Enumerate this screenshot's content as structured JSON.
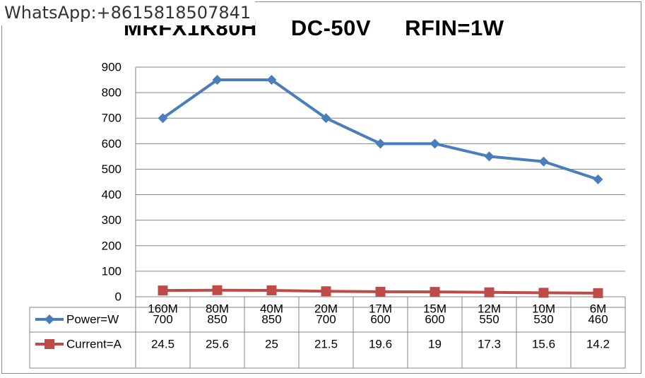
{
  "watermark": "WhatsApp:+8615818507841",
  "title_parts": [
    "MRFX1K80H",
    "DC-50V",
    "RFIN=1W"
  ],
  "chart_data": {
    "type": "line",
    "title": "MRFX1K80H DC-50V RFIN=1W",
    "categories": [
      "160M",
      "80M",
      "40M",
      "20M",
      "17M",
      "15M",
      "12M",
      "10M",
      "6M"
    ],
    "ylim": [
      0,
      900
    ],
    "yticks": [
      0,
      100,
      200,
      300,
      400,
      500,
      600,
      700,
      800,
      900
    ],
    "grid": true,
    "legend": "data-table",
    "series": [
      {
        "name": "Power=W",
        "values": [
          700,
          850,
          850,
          700,
          600,
          600,
          550,
          530,
          460
        ],
        "labels": [
          "700",
          "850",
          "850",
          "700",
          "600",
          "600",
          "550",
          "530",
          "460"
        ],
        "color": "#4a7ebb",
        "marker": "diamond"
      },
      {
        "name": "Current=A",
        "values": [
          24.5,
          25.6,
          25,
          21.5,
          19.6,
          19,
          17.3,
          15.6,
          14.2
        ],
        "labels": [
          "24.5",
          "25.6",
          "25",
          "21.5",
          "19.6",
          "19",
          "17.3",
          "15.6",
          "14.2"
        ],
        "color": "#be4b48",
        "marker": "square"
      }
    ]
  }
}
